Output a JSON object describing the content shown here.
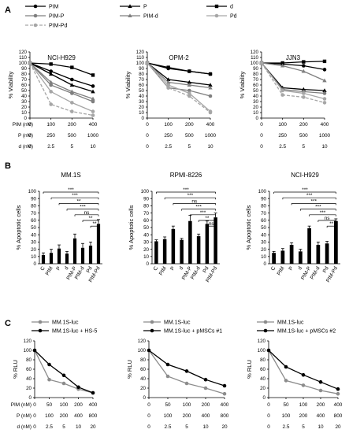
{
  "colors": {
    "black": "#000000",
    "gray": "#8c8c8c",
    "lightgray": "#a6a6a6",
    "gray2": "#7f7f7f"
  },
  "panel_letters": [
    "A",
    "B",
    "C"
  ],
  "panelA": {
    "legend": [
      "PIM",
      "P",
      "d",
      "PIM-P",
      "PIM-d",
      "Pd",
      "PIM-Pd"
    ],
    "ylabel": "% Viability",
    "row_labels": [
      "PIM (nM)",
      "P (nM)",
      "d (nM)"
    ],
    "rows": [
      [
        "0",
        "100",
        "200",
        "400"
      ],
      [
        "0",
        "250",
        "500",
        "1000"
      ],
      [
        "0",
        "2.5",
        "5",
        "10"
      ]
    ]
  },
  "panelB": {
    "ylabel": "% Apoptotic cells",
    "categories": [
      "C",
      "PIM",
      "P",
      "d",
      "PIM-P",
      "PIM-d",
      "Pd",
      "PIM-Pd"
    ],
    "ns": "ns",
    "sig3": "***",
    "sig2": "**"
  },
  "panelC": {
    "ylabel": "% RLU",
    "row_labels": [
      "PIM (nM)",
      "P (nM)",
      "d (nM)"
    ],
    "rows": [
      [
        "0",
        "50",
        "100",
        "200",
        "400"
      ],
      [
        "0",
        "100",
        "200",
        "400",
        "800"
      ],
      [
        "0",
        "2.5",
        "5",
        "10",
        "20"
      ]
    ]
  },
  "chart_data": [
    {
      "type": "line",
      "title": "NCI-H929",
      "ylabel": "% Viability",
      "ylim": [
        0,
        120
      ],
      "x": [
        "0",
        "100",
        "200",
        "400"
      ],
      "series": [
        {
          "name": "PIM",
          "values": [
            100,
            85,
            70,
            58
          ]
        },
        {
          "name": "P",
          "values": [
            100,
            80,
            60,
            48
          ]
        },
        {
          "name": "d",
          "values": [
            100,
            98,
            92,
            78
          ]
        },
        {
          "name": "PIM-P",
          "values": [
            100,
            60,
            45,
            30
          ]
        },
        {
          "name": "PIM-d",
          "values": [
            100,
            65,
            48,
            35
          ]
        },
        {
          "name": "Pd",
          "values": [
            100,
            48,
            28,
            12
          ]
        },
        {
          "name": "PIM-Pd",
          "values": [
            100,
            25,
            12,
            5
          ]
        }
      ]
    },
    {
      "type": "line",
      "title": "OPM-2",
      "ylabel": "% Viability",
      "ylim": [
        0,
        120
      ],
      "x": [
        "0",
        "100",
        "200",
        "400"
      ],
      "series": [
        {
          "name": "PIM",
          "values": [
            100,
            90,
            85,
            80
          ]
        },
        {
          "name": "P",
          "values": [
            100,
            70,
            65,
            60
          ]
        },
        {
          "name": "d",
          "values": [
            100,
            92,
            85,
            80
          ]
        },
        {
          "name": "PIM-P",
          "values": [
            100,
            55,
            50,
            40
          ]
        },
        {
          "name": "PIM-d",
          "values": [
            100,
            65,
            60,
            55
          ]
        },
        {
          "name": "Pd",
          "values": [
            100,
            60,
            45,
            12
          ]
        },
        {
          "name": "PIM-Pd",
          "values": [
            100,
            55,
            40,
            10
          ]
        }
      ]
    },
    {
      "type": "line",
      "title": "JJN3",
      "ylabel": "% Viability",
      "ylim": [
        0,
        120
      ],
      "x": [
        "0",
        "100",
        "200",
        "400"
      ],
      "series": [
        {
          "name": "PIM",
          "values": [
            100,
            98,
            95,
            88
          ]
        },
        {
          "name": "P",
          "values": [
            100,
            55,
            52,
            50
          ]
        },
        {
          "name": "d",
          "values": [
            100,
            100,
            102,
            103
          ]
        },
        {
          "name": "PIM-P",
          "values": [
            100,
            52,
            48,
            45
          ]
        },
        {
          "name": "PIM-d",
          "values": [
            100,
            95,
            85,
            68
          ]
        },
        {
          "name": "Pd",
          "values": [
            100,
            50,
            45,
            35
          ]
        },
        {
          "name": "PIM-Pd",
          "values": [
            100,
            42,
            38,
            28
          ]
        }
      ]
    },
    {
      "type": "bar",
      "title": "MM.1S",
      "ylabel": "% Apoptotic cells",
      "ylim": [
        0,
        100
      ],
      "categories": [
        "C",
        "PIM",
        "P",
        "d",
        "PIM-P",
        "PIM-d",
        "Pd",
        "PIM-Pd"
      ],
      "values": [
        12,
        15,
        21,
        14,
        35,
        22,
        25,
        55
      ],
      "errors": [
        3,
        5,
        5,
        3,
        6,
        6,
        5,
        6
      ],
      "annotations": [
        "***",
        "***",
        "**",
        "***",
        "ns",
        "**",
        "**"
      ]
    },
    {
      "type": "bar",
      "title": "RPMI-8226",
      "ylabel": "% Apoptotic cells",
      "ylim": [
        0,
        100
      ],
      "categories": [
        "C",
        "PIM",
        "P",
        "d",
        "PIM-P",
        "PIM-d",
        "Pd",
        "PIM-Pd"
      ],
      "values": [
        31,
        34,
        48,
        33,
        59,
        38,
        55,
        64
      ],
      "errors": [
        2,
        3,
        4,
        2,
        8,
        3,
        4,
        6
      ],
      "annotations": [
        "***",
        "***",
        "ns",
        "***",
        "***",
        "**",
        "ns"
      ]
    },
    {
      "type": "bar",
      "title": "NCI-H929",
      "ylabel": "% Apoptotic cells",
      "ylim": [
        0,
        100
      ],
      "categories": [
        "C",
        "PIM",
        "P",
        "d",
        "PIM-P",
        "PIM-d",
        "Pd",
        "PIM-Pd"
      ],
      "values": [
        15,
        18,
        26,
        17,
        49,
        26,
        28,
        59
      ],
      "errors": [
        2,
        3,
        3,
        3,
        3,
        4,
        3,
        3
      ],
      "annotations": [
        "***",
        "***",
        "***",
        "***",
        "***",
        "ns",
        "**"
      ]
    },
    {
      "type": "line",
      "title": "",
      "ylabel": "% RLU",
      "ylim": [
        0,
        120
      ],
      "x": [
        "0",
        "50",
        "100",
        "200",
        "400"
      ],
      "series": [
        {
          "name": "MM.1S-luc",
          "values": [
            100,
            38,
            30,
            18,
            10
          ]
        },
        {
          "name": "MM.1S-luc + HS-5",
          "values": [
            100,
            70,
            47,
            22,
            10
          ]
        }
      ]
    },
    {
      "type": "line",
      "title": "",
      "ylabel": "% RLU",
      "ylim": [
        0,
        120
      ],
      "x": [
        "0",
        "50",
        "100",
        "200",
        "400"
      ],
      "series": [
        {
          "name": "MM.1S-luc",
          "values": [
            100,
            45,
            30,
            20,
            8
          ]
        },
        {
          "name": "MM.1S-luc + pMSCs #1",
          "values": [
            100,
            70,
            56,
            38,
            25
          ]
        }
      ]
    },
    {
      "type": "line",
      "title": "",
      "ylabel": "% RLU",
      "ylim": [
        0,
        120
      ],
      "x": [
        "0",
        "50",
        "100",
        "200",
        "400"
      ],
      "series": [
        {
          "name": "MM.1S-luc",
          "values": [
            100,
            36,
            26,
            15,
            8
          ]
        },
        {
          "name": "MM.1S-luc + pMSCs #2",
          "values": [
            100,
            65,
            48,
            33,
            18
          ]
        }
      ]
    }
  ]
}
